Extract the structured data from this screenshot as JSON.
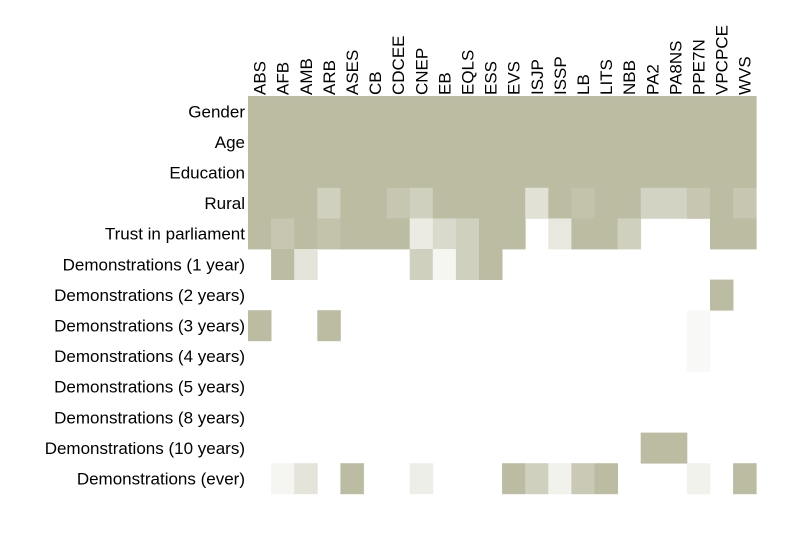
{
  "chart_data": {
    "type": "heatmap",
    "title": "",
    "xlabel": "",
    "ylabel": "",
    "color": "#bcbca3",
    "background": "#ffffff",
    "columns": [
      "ABS",
      "AFB",
      "AMB",
      "ARB",
      "ASES",
      "CB",
      "CDCEE",
      "CNEP",
      "EB",
      "EQLS",
      "ESS",
      "EVS",
      "ISJP",
      "ISSP",
      "LB",
      "LITS",
      "NBB",
      "PA2",
      "PA8NS",
      "PPE7N",
      "VPCPCE",
      "WVS"
    ],
    "rows": [
      "Gender",
      "Age",
      "Education",
      "Rural",
      "Trust in parliament",
      "Demonstrations (1 year)",
      "Demonstrations (2 years)",
      "Demonstrations (3 years)",
      "Demonstrations (4 years)",
      "Demonstrations (5 years)",
      "Demonstrations (8 years)",
      "Demonstrations (10 years)",
      "Demonstrations (ever)"
    ],
    "values": [
      [
        1,
        1,
        1,
        1,
        1,
        1,
        1,
        1,
        1,
        1,
        1,
        1,
        1,
        1,
        1,
        1,
        1,
        1,
        1,
        1,
        1,
        1
      ],
      [
        1,
        1,
        1,
        1,
        1,
        1,
        1,
        1,
        1,
        1,
        1,
        1,
        1,
        1,
        1,
        1,
        1,
        1,
        1,
        1,
        1,
        1
      ],
      [
        1,
        1,
        1,
        1,
        1,
        1,
        1,
        1,
        1,
        1,
        1,
        1,
        1,
        1,
        1,
        1,
        1,
        1,
        1,
        1,
        1,
        1
      ],
      [
        1,
        1,
        1,
        0.7,
        1,
        1,
        0.85,
        0.7,
        1,
        1,
        1,
        1,
        0.45,
        1,
        0.9,
        1,
        1,
        0.65,
        0.65,
        0.85,
        1,
        0.85
      ],
      [
        1,
        0.85,
        1,
        0.9,
        1,
        1,
        1,
        0.3,
        0.55,
        0.7,
        1,
        1,
        0,
        0.35,
        1,
        1,
        0.7,
        0,
        0,
        0,
        1,
        1
      ],
      [
        0,
        1,
        0.4,
        0,
        0,
        0,
        0,
        0.7,
        0.15,
        0.7,
        1,
        0,
        0,
        0,
        0,
        0,
        0,
        0,
        0,
        0,
        0,
        0
      ],
      [
        0,
        0,
        0,
        0,
        0,
        0,
        0,
        0,
        0,
        0,
        0,
        0,
        0,
        0,
        0,
        0,
        0,
        0,
        0,
        0,
        1,
        0
      ],
      [
        1,
        0,
        0,
        1,
        0,
        0,
        0,
        0,
        0,
        0,
        0,
        0,
        0,
        0,
        0,
        0,
        0,
        0,
        0,
        0.1,
        0,
        0
      ],
      [
        0,
        0,
        0,
        0,
        0,
        0,
        0,
        0,
        0,
        0,
        0,
        0,
        0,
        0,
        0,
        0,
        0,
        0,
        0,
        0.1,
        0,
        0
      ],
      [
        0,
        0,
        0,
        0,
        0,
        0,
        0,
        0,
        0,
        0,
        0,
        0,
        0,
        0,
        0,
        0,
        0,
        0,
        0,
        0,
        0,
        0
      ],
      [
        0,
        0,
        0,
        0,
        0,
        0,
        0,
        0,
        0,
        0,
        0,
        0,
        0,
        0,
        0,
        0,
        0,
        0,
        0,
        0,
        0,
        0
      ],
      [
        0,
        0,
        0,
        0,
        0,
        0,
        0,
        0,
        0,
        0,
        0,
        0,
        0,
        0,
        0,
        0,
        0,
        1,
        1,
        0,
        0,
        0
      ],
      [
        0,
        0.15,
        0.4,
        0,
        1,
        0,
        0,
        0.25,
        0,
        0,
        0,
        1,
        0.7,
        0.2,
        0.8,
        1,
        0,
        0,
        0,
        0.2,
        0,
        1
      ]
    ]
  }
}
